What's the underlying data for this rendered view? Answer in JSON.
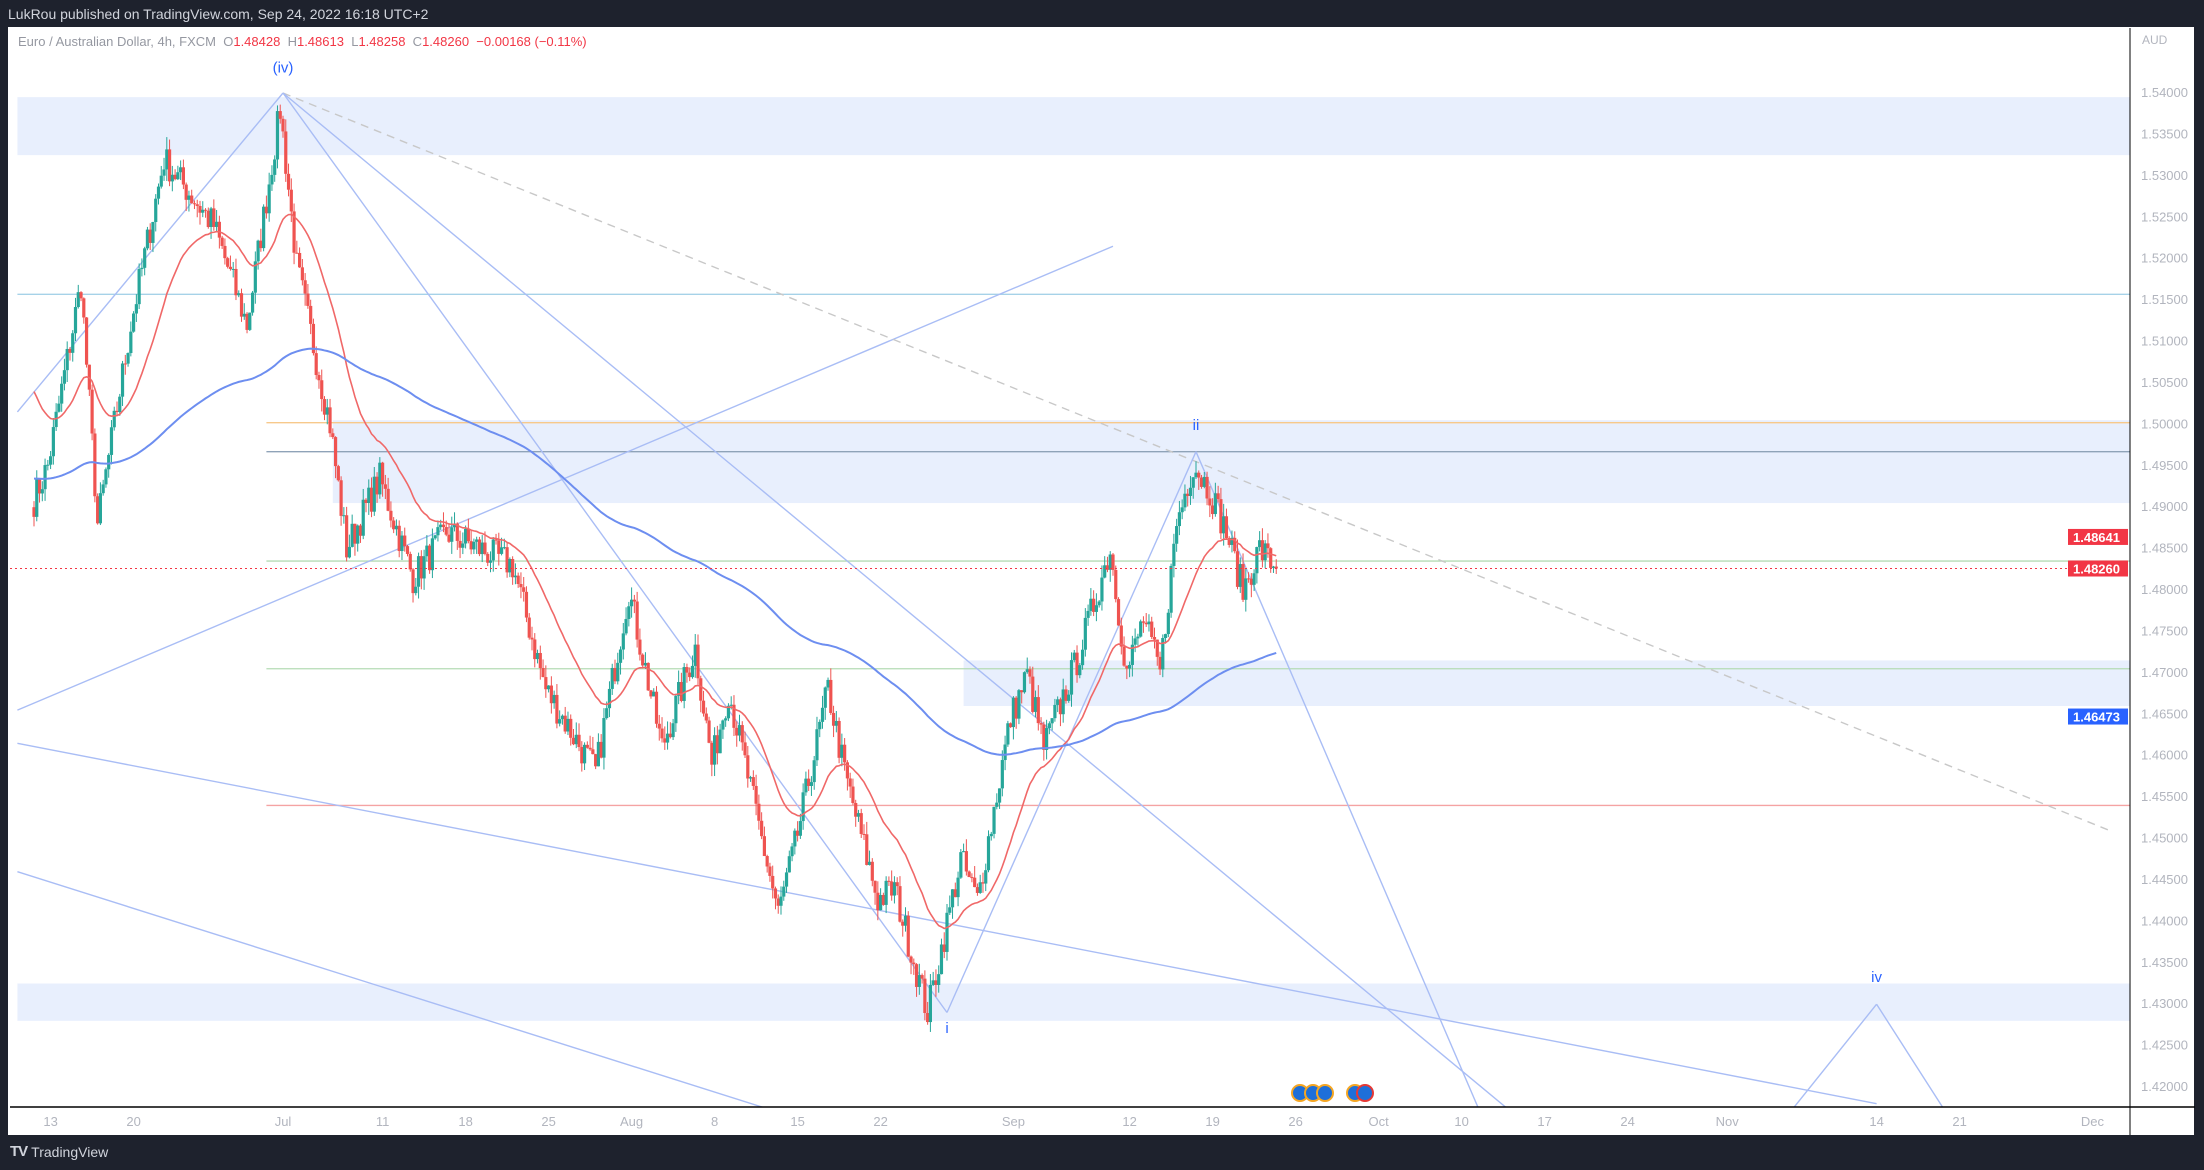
{
  "header": {
    "published": "LukRou published on TradingView.com, Sep 24, 2022 16:18 UTC+2"
  },
  "legend": {
    "symbol": "Euro / Australian Dollar, 4h, FXCM",
    "o_label": "O",
    "o": "1.48428",
    "h_label": "H",
    "h": "1.48613",
    "l_label": "L",
    "l": "1.48258",
    "c_label": "C",
    "c": "1.48260",
    "change": "−0.00168 (−0.11%)"
  },
  "footer": {
    "logo": "TradingView"
  },
  "colors": {
    "up": "#26a69a",
    "down": "#ef5350",
    "ma_fast": "#f06868",
    "ma_slow": "#6d8ef0",
    "zone": "#e8effd",
    "trend": "#a9bdf5"
  },
  "chart_data": {
    "type": "candlestick",
    "timeframe": "4h",
    "currency_label": "AUD",
    "ylim": [
      1.4175,
      1.5445
    ],
    "y_ticks": [
      "1.54000",
      "1.53500",
      "1.53000",
      "1.52500",
      "1.52000",
      "1.51500",
      "1.51000",
      "1.50500",
      "1.50000",
      "1.49500",
      "1.49000",
      "1.48500",
      "1.48000",
      "1.47500",
      "1.47000",
      "1.46500",
      "1.46000",
      "1.45500",
      "1.45000",
      "1.44500",
      "1.44000",
      "1.43500",
      "1.43000",
      "1.42500",
      "1.42000"
    ],
    "x_ticks": [
      [
        "13",
        "2022-06-13"
      ],
      [
        "20",
        "2022-06-20"
      ],
      [
        "Jul",
        "2022-07-01"
      ],
      [
        "11",
        "2022-07-11"
      ],
      [
        "18",
        "2022-07-18"
      ],
      [
        "25",
        "2022-07-25"
      ],
      [
        "Aug",
        "2022-08-01"
      ],
      [
        "8",
        "2022-08-08"
      ],
      [
        "15",
        "2022-08-15"
      ],
      [
        "22",
        "2022-08-22"
      ],
      [
        "Sep",
        "2022-09-01"
      ],
      [
        "12",
        "2022-09-12"
      ],
      [
        "19",
        "2022-09-19"
      ],
      [
        "26",
        "2022-09-26"
      ],
      [
        "Oct",
        "2022-10-03"
      ],
      [
        "10",
        "2022-10-10"
      ],
      [
        "17",
        "2022-10-17"
      ],
      [
        "24",
        "2022-10-24"
      ],
      [
        "Nov",
        "2022-11-01"
      ],
      [
        "14",
        "2022-11-14"
      ],
      [
        "21",
        "2022-11-21"
      ],
      [
        "Dec",
        "2022-12-01"
      ]
    ],
    "price_path": [
      [
        "2022-06-10",
        1.49
      ],
      [
        "2022-06-13",
        1.495
      ],
      [
        "2022-06-15",
        1.517
      ],
      [
        "2022-06-16",
        1.488
      ],
      [
        "2022-06-20",
        1.512
      ],
      [
        "2022-06-22",
        1.532
      ],
      [
        "2022-06-27",
        1.524
      ],
      [
        "2022-06-29",
        1.512
      ],
      [
        "2022-07-01",
        1.538
      ],
      [
        "2022-07-04",
        1.519
      ],
      [
        "2022-07-06",
        1.5
      ],
      [
        "2022-07-07",
        1.485
      ],
      [
        "2022-07-11",
        1.4935
      ],
      [
        "2022-07-13",
        1.4815
      ],
      [
        "2022-07-15",
        1.487
      ],
      [
        "2022-07-21",
        1.483
      ],
      [
        "2022-07-25",
        1.468
      ],
      [
        "2022-07-28",
        1.458
      ],
      [
        "2022-08-01",
        1.48
      ],
      [
        "2022-08-03",
        1.461
      ],
      [
        "2022-08-05",
        1.473
      ],
      [
        "2022-08-08",
        1.459
      ],
      [
        "2022-08-09",
        1.468
      ],
      [
        "2022-08-12",
        1.441
      ],
      [
        "2022-08-15",
        1.449
      ],
      [
        "2022-08-17",
        1.468
      ],
      [
        "2022-08-18",
        1.458
      ],
      [
        "2022-08-22",
        1.4426
      ],
      [
        "2022-08-23",
        1.444
      ],
      [
        "2022-08-25",
        1.429
      ],
      [
        "2022-08-29",
        1.4475
      ],
      [
        "2022-08-30",
        1.4425
      ],
      [
        "2022-09-01",
        1.4645
      ],
      [
        "2022-09-02",
        1.4698
      ],
      [
        "2022-09-05",
        1.461
      ],
      [
        "2022-09-07",
        1.4715
      ],
      [
        "2022-09-09",
        1.485
      ],
      [
        "2022-09-12",
        1.47
      ],
      [
        "2022-09-13",
        1.4765
      ],
      [
        "2022-09-14",
        1.47
      ],
      [
        "2022-09-15",
        1.488
      ],
      [
        "2022-09-16",
        1.4953
      ],
      [
        "2022-09-19",
        1.492
      ],
      [
        "2022-09-20",
        1.487
      ],
      [
        "2022-09-21",
        1.48
      ],
      [
        "2022-09-22",
        1.485
      ],
      [
        "2022-09-23",
        1.4826
      ]
    ],
    "last_price": {
      "value": 1.4826,
      "label": "1.48260",
      "color": "#f23645"
    },
    "ma_fast_last": {
      "value": 1.48641,
      "label": "1.48641",
      "color": "#f23645"
    },
    "ma_slow_last": {
      "value": 1.46473,
      "label": "1.46473",
      "color": "#2962ff"
    },
    "zones": [
      {
        "from": "2022-06-09",
        "top": 1.5395,
        "bottom": 1.5325
      },
      {
        "from": "2022-07-06",
        "top": 1.5005,
        "bottom": 1.4905
      },
      {
        "from": "2022-08-29",
        "top": 1.4715,
        "bottom": 1.466
      },
      {
        "from": "2022-06-09",
        "top": 1.4325,
        "bottom": 1.428
      }
    ],
    "levels": [
      {
        "from": "2022-06-30",
        "price": 1.5002,
        "color": "#f7c98b"
      },
      {
        "from": "2022-06-30",
        "price": 1.4967,
        "color": "#8fa3b8"
      },
      {
        "from": "2022-06-09",
        "price": 1.5157,
        "color": "#a6d2e8"
      },
      {
        "from": "2022-06-30",
        "price": 1.4705,
        "color": "#b5dcb5"
      },
      {
        "from": "2022-06-30",
        "price": 1.454,
        "color": "#f5a3a3"
      },
      {
        "from": "2022-06-30",
        "price": 1.4835,
        "color": "#b5dcb5"
      }
    ],
    "trendlines": [
      {
        "p1": [
          "2022-06-09",
          1.5015
        ],
        "p2": [
          "2022-07-01",
          1.54
        ]
      },
      {
        "p1": [
          "2022-06-09",
          1.4655
        ],
        "p2": [
          "2022-09-09",
          1.5215
        ]
      },
      {
        "p1": [
          "2022-07-01",
          1.54
        ],
        "p2": [
          "2022-12-02",
          1.451
        ],
        "dashed": true
      },
      {
        "p1": [
          "2022-07-01",
          1.54
        ],
        "p2": [
          "2022-08-26",
          1.429
        ]
      },
      {
        "p1": [
          "2022-07-01",
          1.54
        ],
        "p2": [
          "2022-10-13",
          1.417
        ]
      },
      {
        "p1": [
          "2022-06-09",
          1.4615
        ],
        "p2": [
          "2022-11-14",
          1.418
        ]
      },
      {
        "p1": [
          "2022-06-09",
          1.446
        ],
        "p2": [
          "2022-08-11",
          1.4175
        ]
      },
      {
        "p1": [
          "2022-08-26",
          1.429
        ],
        "p2": [
          "2022-09-16",
          1.4967
        ]
      },
      {
        "p1": [
          "2022-09-16",
          1.4967
        ],
        "p2": [
          "2022-10-11",
          1.4175
        ]
      },
      {
        "p1": [
          "2022-11-07",
          1.4175
        ],
        "p2": [
          "2022-11-14",
          1.43
        ]
      },
      {
        "p1": [
          "2022-11-14",
          1.43
        ],
        "p2": [
          "2022-11-18",
          1.4175
        ]
      }
    ],
    "wave_labels": [
      {
        "text": "(iv)",
        "date": "2022-07-01",
        "price": 1.5425
      },
      {
        "text": "ii",
        "date": "2022-09-16",
        "price": 1.4993
      },
      {
        "text": "i",
        "date": "2022-08-26",
        "price": 1.4265
      },
      {
        "text": "iv",
        "date": "2022-11-14",
        "price": 1.4327
      }
    ]
  }
}
